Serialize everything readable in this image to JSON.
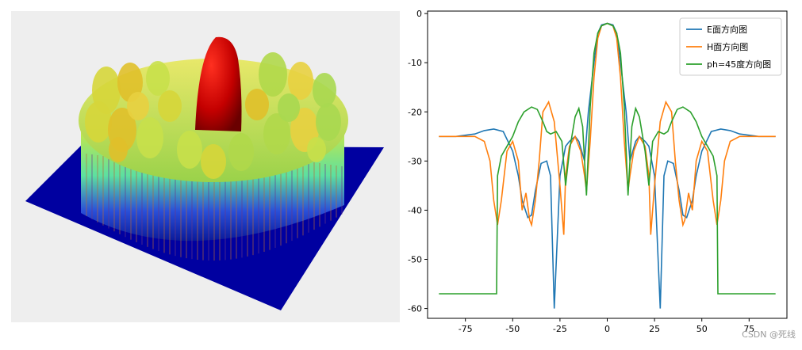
{
  "chart_data": [
    {
      "type": "surface3d",
      "title": "",
      "colormap": [
        "#00008b",
        "#00ffff",
        "#ffff00",
        "#ff0000",
        "#8b0000"
      ],
      "description_values": {
        "base": "flat",
        "peak": "central main lobe"
      }
    },
    {
      "type": "line",
      "title": "",
      "xlabel": "",
      "ylabel": "",
      "xlim": [
        -95,
        95
      ],
      "ylim": [
        -62,
        0.5
      ],
      "xticks": [
        -75,
        -50,
        -25,
        0,
        25,
        50,
        75
      ],
      "yticks": [
        0,
        -10,
        -20,
        -30,
        -40,
        -50,
        -60
      ],
      "legend_position": "top-right",
      "series": [
        {
          "name": "E面方向图",
          "color": "#1f77b4",
          "x": [
            -89,
            -80,
            -70,
            -65,
            -60,
            -55,
            -50,
            -47,
            -45,
            -42,
            -40,
            -38,
            -35,
            -32,
            -30,
            -28,
            -25,
            -22,
            -20,
            -17,
            -15,
            -12,
            -10,
            -7,
            -5,
            -3,
            0,
            3,
            5,
            7,
            10,
            12,
            15,
            17,
            20,
            22,
            25,
            28,
            30,
            32,
            35,
            38,
            40,
            42,
            45,
            47,
            50,
            55,
            60,
            65,
            70,
            80,
            89
          ],
          "y": [
            -25,
            -25,
            -24.5,
            -23.8,
            -23.5,
            -24,
            -28,
            -33,
            -38,
            -41.5,
            -41,
            -36,
            -30.5,
            -30,
            -33,
            -60,
            -33,
            -27,
            -26,
            -25,
            -26,
            -30,
            -20,
            -10,
            -4,
            -2.3,
            -2,
            -2.3,
            -4,
            -10,
            -20,
            -30,
            -26,
            -25,
            -26,
            -27,
            -33,
            -60,
            -33,
            -30,
            -30.5,
            -36,
            -41,
            -41.5,
            -38,
            -33,
            -28,
            -24,
            -23.5,
            -23.8,
            -24.5,
            -25,
            -25
          ]
        },
        {
          "name": "H面方向图",
          "color": "#ff7f0e",
          "x": [
            -89,
            -75,
            -70,
            -65,
            -62,
            -60,
            -58,
            -56,
            -53,
            -50,
            -47,
            -45,
            -43,
            -41,
            -40,
            -38,
            -36,
            -34,
            -31,
            -28,
            -25,
            -23,
            -22,
            -20,
            -17,
            -14,
            -12,
            -11,
            -9,
            -7,
            -5,
            -3,
            0,
            3,
            5,
            7,
            9,
            11,
            12,
            14,
            17,
            20,
            22,
            23,
            25,
            28,
            31,
            34,
            36,
            38,
            40,
            41,
            43,
            45,
            47,
            50,
            53,
            56,
            58,
            60,
            62,
            65,
            70,
            75,
            89
          ],
          "y": [
            -25,
            -25,
            -25,
            -26,
            -30,
            -38,
            -43,
            -38,
            -28,
            -26,
            -30,
            -40,
            -36.5,
            -42,
            -43,
            -38,
            -30,
            -20,
            -18,
            -22,
            -35,
            -45,
            -33,
            -27,
            -25,
            -28,
            -33,
            -36,
            -26,
            -13,
            -5,
            -2.5,
            -2,
            -2.5,
            -5,
            -13,
            -26,
            -36,
            -33,
            -28,
            -25,
            -27,
            -33,
            -45,
            -35,
            -22,
            -18,
            -20,
            -30,
            -38,
            -43,
            -42,
            -36.5,
            -40,
            -30,
            -26,
            -28,
            -38,
            -43,
            -38,
            -30,
            -26,
            -25,
            -25,
            -25
          ]
        },
        {
          "name": "ph=45度方向图",
          "color": "#2ca02c",
          "x": [
            -89,
            -70,
            -58.5,
            -58,
            -56,
            -53,
            -50,
            -47,
            -44,
            -40,
            -37,
            -34,
            -32,
            -30,
            -27,
            -24,
            -22,
            -20,
            -17,
            -15,
            -13,
            -11,
            -9,
            -7,
            -5,
            -3,
            0,
            3,
            5,
            7,
            9,
            11,
            13,
            15,
            17,
            20,
            22,
            24,
            27,
            30,
            32,
            34,
            37,
            40,
            44,
            47,
            50,
            53,
            56,
            58,
            58.5,
            70,
            89
          ],
          "y": [
            -57,
            -57,
            -57,
            -33,
            -29,
            -27,
            -25,
            -22,
            -20,
            -19,
            -19.5,
            -22,
            -24,
            -24.5,
            -24,
            -26,
            -35,
            -28,
            -21,
            -19.3,
            -23,
            -37,
            -19,
            -8,
            -4,
            -2.5,
            -2,
            -2.5,
            -4,
            -8,
            -19,
            -37,
            -23,
            -19.3,
            -21,
            -28,
            -35,
            -26,
            -24,
            -24.5,
            -24,
            -22,
            -19.5,
            -19,
            -20,
            -22,
            -25,
            -27,
            -29,
            -33,
            -57,
            -57,
            -57
          ]
        }
      ]
    }
  ],
  "watermark": "CSDN @死线"
}
